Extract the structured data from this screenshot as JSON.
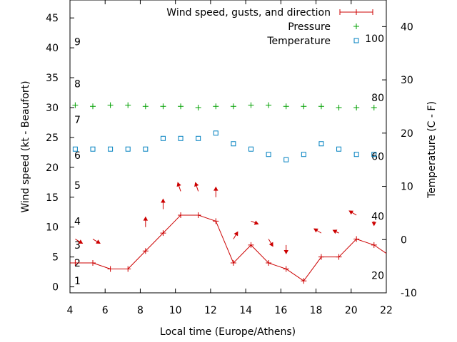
{
  "chart_data": {
    "type": "line",
    "xlabel": "Local time (Europe/Athens)",
    "ylabel": "Wind speed (kt - Beaufort)",
    "y2label": "Temperature (C - F)",
    "xlim": [
      4,
      22
    ],
    "ylim": [
      -1,
      48
    ],
    "y2lim": [
      -10,
      45
    ],
    "x_ticks": [
      4,
      6,
      8,
      10,
      12,
      14,
      16,
      18,
      20,
      22
    ],
    "y_ticks": [
      0,
      5,
      10,
      15,
      20,
      25,
      30,
      35,
      40,
      45
    ],
    "y2_ticks": [
      -10,
      0,
      10,
      20,
      30,
      40
    ],
    "beaufort_labels": [
      {
        "label": "1",
        "kt": 1
      },
      {
        "label": "2",
        "kt": 4
      },
      {
        "label": "3",
        "kt": 7
      },
      {
        "label": "4",
        "kt": 11
      },
      {
        "label": "5",
        "kt": 17
      },
      {
        "label": "6",
        "kt": 22
      },
      {
        "label": "7",
        "kt": 28
      },
      {
        "label": "8",
        "kt": 34
      },
      {
        "label": "9",
        "kt": 41
      }
    ],
    "fahrenheit_labels": [
      {
        "label": "20",
        "celsius": -6.7
      },
      {
        "label": "40",
        "celsius": 4.4
      },
      {
        "label": "60",
        "celsius": 15.6
      },
      {
        "label": "80",
        "celsius": 26.7
      },
      {
        "label": "100",
        "celsius": 37.8
      }
    ],
    "legend_position": "top-right",
    "series": [
      {
        "name": "Wind speed, gusts, and direction",
        "color": "#cc0000",
        "marker": "plus-line",
        "x": [
          3.3,
          4.3,
          5.3,
          6.3,
          7.3,
          8.3,
          9.3,
          10.3,
          11.3,
          12.3,
          13.3,
          14.3,
          15.3,
          16.3,
          17.3,
          18.3,
          19.3,
          20.3,
          21.3,
          22.3
        ],
        "values": [
          4,
          4,
          4,
          3,
          3,
          6,
          9,
          12,
          12,
          11,
          4,
          7,
          4,
          3,
          1,
          5,
          5,
          8,
          7,
          5
        ]
      },
      {
        "name": "Pressure",
        "color": "#00a000",
        "marker": "plus",
        "x": [
          4.3,
          5.3,
          6.3,
          7.3,
          8.3,
          9.3,
          10.3,
          11.3,
          12.3,
          13.3,
          14.3,
          15.3,
          16.3,
          17.3,
          18.3,
          19.3,
          20.3,
          21.3
        ],
        "values": [
          30.4,
          30.2,
          30.4,
          30.4,
          30.2,
          30.2,
          30.2,
          30.0,
          30.2,
          30.2,
          30.4,
          30.4,
          30.2,
          30.2,
          30.2,
          30.0,
          30.0,
          30.0
        ]
      },
      {
        "name": "Temperature",
        "color": "#0080c0",
        "marker": "square",
        "x": [
          4.3,
          5.3,
          6.3,
          7.3,
          8.3,
          9.3,
          10.3,
          11.3,
          12.3,
          13.3,
          14.3,
          15.3,
          16.3,
          17.3,
          18.3,
          19.3,
          20.3,
          21.3
        ],
        "values": [
          17,
          17,
          17,
          17,
          17,
          19,
          19,
          19,
          20,
          18,
          17,
          16,
          15,
          16,
          18,
          17,
          16,
          16
        ]
      }
    ],
    "wind_direction_arrows": {
      "color": "#cc0000",
      "points": [
        {
          "x": 4.3,
          "y": 8,
          "dx": 10,
          "dy": 6
        },
        {
          "x": 5.3,
          "y": 8,
          "dx": 10,
          "dy": 6
        },
        {
          "x": 8.3,
          "y": 10,
          "dx": 0,
          "dy": -14
        },
        {
          "x": 9.3,
          "y": 13,
          "dx": 0,
          "dy": -14
        },
        {
          "x": 10.3,
          "y": 16,
          "dx": -4,
          "dy": -12
        },
        {
          "x": 11.3,
          "y": 16,
          "dx": -4,
          "dy": -12
        },
        {
          "x": 12.3,
          "y": 15,
          "dx": 0,
          "dy": -14
        },
        {
          "x": 13.3,
          "y": 8,
          "dx": 6,
          "dy": -10
        },
        {
          "x": 14.3,
          "y": 11,
          "dx": 10,
          "dy": 4
        },
        {
          "x": 15.3,
          "y": 8,
          "dx": 6,
          "dy": 10
        },
        {
          "x": 16.3,
          "y": 7,
          "dx": 0,
          "dy": 12
        },
        {
          "x": 18.3,
          "y": 9,
          "dx": -10,
          "dy": -6
        },
        {
          "x": 19.3,
          "y": 9,
          "dx": -8,
          "dy": -4
        },
        {
          "x": 20.3,
          "y": 12,
          "dx": -10,
          "dy": -6
        },
        {
          "x": 21.3,
          "y": 11,
          "dx": 0,
          "dy": 6
        }
      ]
    }
  }
}
